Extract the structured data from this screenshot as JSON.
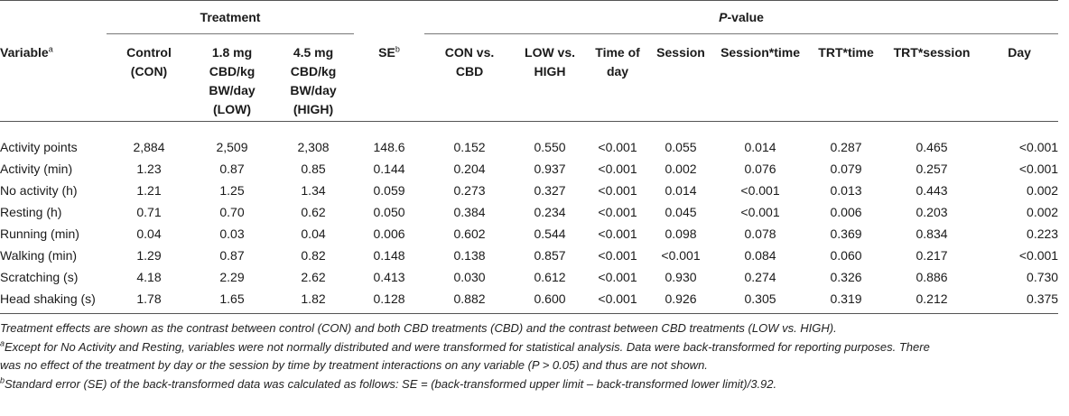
{
  "group_headers": {
    "treatment": "Treatment",
    "pvalue_italic": "P",
    "pvalue_rest": "-value"
  },
  "columns": {
    "variable": "Variable",
    "variable_sup": "a",
    "con": [
      "Control",
      "(CON)"
    ],
    "low": [
      "1.8 mg",
      "CBD/kg",
      "BW/day",
      "(LOW)"
    ],
    "high": [
      "4.5 mg",
      "CBD/kg",
      "BW/day",
      "(HIGH)"
    ],
    "se": "SE",
    "se_sup": "b",
    "con_vs_cbd": [
      "CON vs.",
      "CBD"
    ],
    "low_vs_high": [
      "LOW vs.",
      "HIGH"
    ],
    "time_of_day": [
      "Time of",
      "day"
    ],
    "session": "Session",
    "session_time": "Session*time",
    "trt_time": "TRT*time",
    "trt_session": "TRT*session",
    "day": "Day"
  },
  "rows": [
    {
      "variable": "Activity points",
      "con": "2,884",
      "low": "2,509",
      "high": "2,308",
      "se": "148.6",
      "con_vs_cbd": "0.152",
      "low_vs_high": "0.550",
      "time_of_day": "<0.001",
      "session": "0.055",
      "session_time": "0.014",
      "trt_time": "0.287",
      "trt_session": "0.465",
      "day": "<0.001"
    },
    {
      "variable": "Activity (min)",
      "con": "1.23",
      "low": "0.87",
      "high": "0.85",
      "se": "0.144",
      "con_vs_cbd": "0.204",
      "low_vs_high": "0.937",
      "time_of_day": "<0.001",
      "session": "0.002",
      "session_time": "0.076",
      "trt_time": "0.079",
      "trt_session": "0.257",
      "day": "<0.001"
    },
    {
      "variable": "No activity (h)",
      "con": "1.21",
      "low": "1.25",
      "high": "1.34",
      "se": "0.059",
      "con_vs_cbd": "0.273",
      "low_vs_high": "0.327",
      "time_of_day": "<0.001",
      "session": "0.014",
      "session_time": "<0.001",
      "trt_time": "0.013",
      "trt_session": "0.443",
      "day": "0.002"
    },
    {
      "variable": "Resting (h)",
      "con": "0.71",
      "low": "0.70",
      "high": "0.62",
      "se": "0.050",
      "con_vs_cbd": "0.384",
      "low_vs_high": "0.234",
      "time_of_day": "<0.001",
      "session": "0.045",
      "session_time": "<0.001",
      "trt_time": "0.006",
      "trt_session": "0.203",
      "day": "0.002"
    },
    {
      "variable": "Running (min)",
      "con": "0.04",
      "low": "0.03",
      "high": "0.04",
      "se": "0.006",
      "con_vs_cbd": "0.602",
      "low_vs_high": "0.544",
      "time_of_day": "<0.001",
      "session": "0.098",
      "session_time": "0.078",
      "trt_time": "0.369",
      "trt_session": "0.834",
      "day": "0.223"
    },
    {
      "variable": "Walking (min)",
      "con": "1.29",
      "low": "0.87",
      "high": "0.82",
      "se": "0.148",
      "con_vs_cbd": "0.138",
      "low_vs_high": "0.857",
      "time_of_day": "<0.001",
      "session": "<0.001",
      "session_time": "0.084",
      "trt_time": "0.060",
      "trt_session": "0.217",
      "day": "<0.001"
    },
    {
      "variable": "Scratching (s)",
      "con": "4.18",
      "low": "2.29",
      "high": "2.62",
      "se": "0.413",
      "con_vs_cbd": "0.030",
      "low_vs_high": "0.612",
      "time_of_day": "<0.001",
      "session": "0.930",
      "session_time": "0.274",
      "trt_time": "0.326",
      "trt_session": "0.886",
      "day": "0.730"
    },
    {
      "variable": "Head shaking (s)",
      "con": "1.78",
      "low": "1.65",
      "high": "1.82",
      "se": "0.128",
      "con_vs_cbd": "0.882",
      "low_vs_high": "0.600",
      "time_of_day": "<0.001",
      "session": "0.926",
      "session_time": "0.305",
      "trt_time": "0.319",
      "trt_session": "0.212",
      "day": "0.375"
    }
  ],
  "notes": {
    "general": "Treatment effects are shown as the contrast between control (CON) and both CBD treatments (CBD) and the contrast between CBD treatments (LOW vs. HIGH).",
    "a_mark": "a",
    "a_line1": "Except for No Activity and Resting, variables were not normally distributed and were transformed for statistical analysis. Data were back-transformed for reporting purposes. There",
    "a_line2": "was no effect of the treatment by day or the session by time by treatment interactions on any variable (P > 0.05) and thus are not shown.",
    "b_mark": "b",
    "b_text": "Standard error (SE) of the back-transformed data was calculated as follows: SE = (back-transformed upper limit – back-transformed lower limit)/3.92."
  }
}
